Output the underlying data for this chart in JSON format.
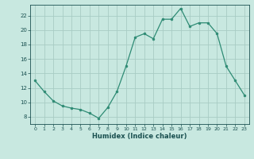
{
  "x": [
    0,
    1,
    2,
    3,
    4,
    5,
    6,
    7,
    8,
    9,
    10,
    11,
    12,
    13,
    14,
    15,
    16,
    17,
    18,
    19,
    20,
    21,
    22,
    23
  ],
  "y": [
    13,
    11.5,
    10.2,
    9.5,
    9.2,
    9.0,
    8.5,
    7.8,
    9.3,
    11.5,
    15.0,
    19.0,
    19.5,
    18.8,
    21.5,
    21.5,
    23.0,
    20.5,
    21.0,
    21.0,
    19.5,
    15.0,
    13.0,
    11.0
  ],
  "xlabel": "Humidex (Indice chaleur)",
  "xlim": [
    -0.5,
    23.5
  ],
  "ylim": [
    7,
    23.5
  ],
  "yticks": [
    8,
    10,
    12,
    14,
    16,
    18,
    20,
    22
  ],
  "xticks": [
    0,
    1,
    2,
    3,
    4,
    5,
    6,
    7,
    8,
    9,
    10,
    11,
    12,
    13,
    14,
    15,
    16,
    17,
    18,
    19,
    20,
    21,
    22,
    23
  ],
  "line_color": "#2e8b74",
  "marker_color": "#2e8b74",
  "bg_color": "#c8e8e0",
  "grid_color": "#a8ccc4",
  "label_color": "#1a5050",
  "tick_color": "#1a5050"
}
